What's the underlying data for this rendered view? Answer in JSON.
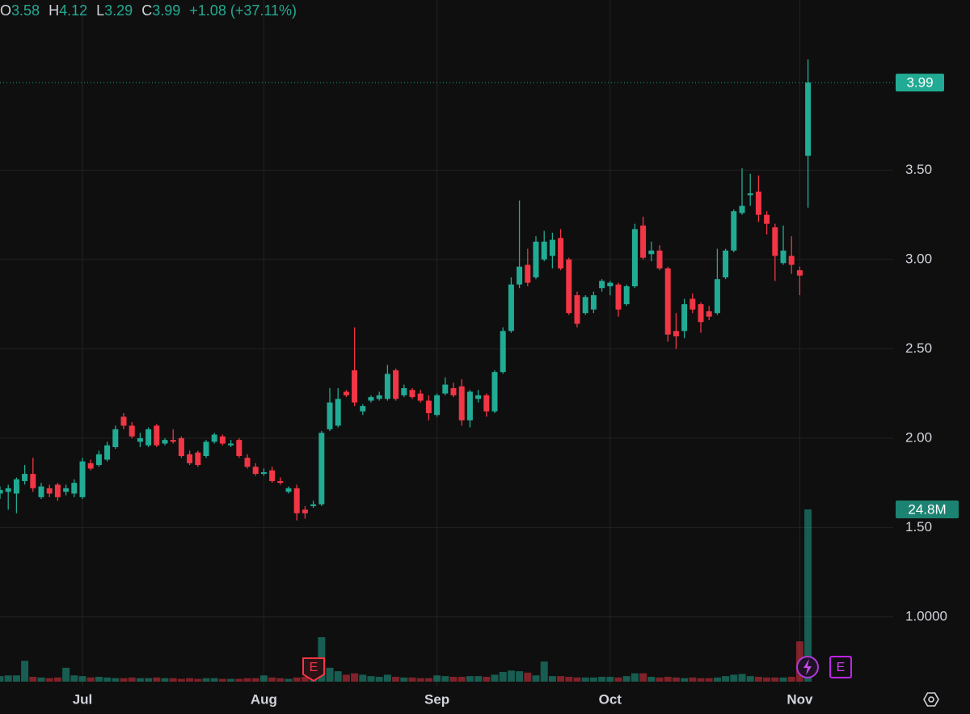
{
  "chart_data": {
    "type": "candlestick",
    "header": {
      "labels": [
        "O",
        "H",
        "L",
        "C"
      ],
      "change": "+1.08 (+37.11%)"
    },
    "categories": [
      null,
      null,
      null,
      null,
      null,
      null,
      null,
      null,
      null,
      null,
      "Jul",
      null,
      null,
      null,
      null,
      null,
      null,
      null,
      null,
      null,
      null,
      null,
      null,
      null,
      null,
      null,
      null,
      null,
      null,
      null,
      null,
      null,
      "Aug",
      null,
      null,
      null,
      null,
      null,
      null,
      null,
      null,
      null,
      null,
      null,
      null,
      null,
      null,
      null,
      null,
      null,
      null,
      null,
      null,
      "Sep",
      null,
      null,
      null,
      null,
      null,
      null,
      null,
      null,
      null,
      null,
      null,
      null,
      null,
      null,
      null,
      null,
      null,
      null,
      null,
      null,
      "Oct",
      null,
      null,
      null,
      null,
      null,
      null,
      null,
      null,
      null,
      null,
      null,
      null,
      null,
      null,
      null,
      null,
      null,
      null,
      null,
      null,
      null,
      null,
      "Nov",
      null
    ],
    "open": [
      1.69,
      1.7,
      1.69,
      1.76,
      1.8,
      1.67,
      1.72,
      1.74,
      1.7,
      1.69,
      1.67,
      1.86,
      1.85,
      1.88,
      1.95,
      2.12,
      2.07,
      1.98,
      1.96,
      2.07,
      1.97,
      1.99,
      2.0,
      1.91,
      1.92,
      1.9,
      1.98,
      2.01,
      1.96,
      1.99,
      1.89,
      1.84,
      1.8,
      1.82,
      1.76,
      1.7,
      1.72,
      1.6,
      1.62,
      1.63,
      2.05,
      2.07,
      2.26,
      2.38,
      2.15,
      2.21,
      2.22,
      2.22,
      2.38,
      2.24,
      2.27,
      2.25,
      2.21,
      2.13,
      2.25,
      2.28,
      2.29,
      2.1,
      2.22,
      2.24,
      2.15,
      2.37,
      2.6,
      2.86,
      2.97,
      2.9,
      3.0,
      3.02,
      3.12,
      3.0,
      2.8,
      2.7,
      2.72,
      2.84,
      2.85,
      2.86,
      2.75,
      2.85,
      3.19,
      3.03,
      3.05,
      2.95,
      2.6,
      2.6,
      2.78,
      2.75,
      2.71,
      2.7,
      2.9,
      3.05,
      3.26,
      3.36,
      3.38,
      3.25,
      3.18,
      2.98,
      3.02,
      2.94,
      3.58
    ],
    "high": [
      1.73,
      1.74,
      1.78,
      1.85,
      1.89,
      1.75,
      1.74,
      1.75,
      1.74,
      1.77,
      1.89,
      1.88,
      1.93,
      1.98,
      2.07,
      2.14,
      2.09,
      2.03,
      2.06,
      2.08,
      2.0,
      2.05,
      2.01,
      1.93,
      1.93,
      1.99,
      2.03,
      2.02,
      1.99,
      2.0,
      1.91,
      1.86,
      1.83,
      1.84,
      1.78,
      1.73,
      1.74,
      1.62,
      1.65,
      2.04,
      2.28,
      2.28,
      2.27,
      2.62,
      2.19,
      2.24,
      2.26,
      2.41,
      2.39,
      2.3,
      2.28,
      2.27,
      2.24,
      2.25,
      2.34,
      2.31,
      2.33,
      2.27,
      2.27,
      2.25,
      2.38,
      2.62,
      2.9,
      3.33,
      3.06,
      3.13,
      3.16,
      3.15,
      3.17,
      3.01,
      2.82,
      2.8,
      2.82,
      2.89,
      2.88,
      2.87,
      2.86,
      3.2,
      3.24,
      3.1,
      3.08,
      2.96,
      2.7,
      2.78,
      2.81,
      2.76,
      2.74,
      3.06,
      3.06,
      3.28,
      3.51,
      3.48,
      3.47,
      3.27,
      3.2,
      3.19,
      3.13,
      2.96,
      4.12
    ],
    "low": [
      1.66,
      1.6,
      1.58,
      1.74,
      1.7,
      1.66,
      1.67,
      1.65,
      1.68,
      1.67,
      1.66,
      1.82,
      1.84,
      1.87,
      1.94,
      2.05,
      2.0,
      1.95,
      1.95,
      1.95,
      1.96,
      1.97,
      1.89,
      1.85,
      1.84,
      1.89,
      1.97,
      1.96,
      1.95,
      1.89,
      1.83,
      1.79,
      1.79,
      1.75,
      1.74,
      1.69,
      1.54,
      1.55,
      1.61,
      1.62,
      2.04,
      2.06,
      2.23,
      2.18,
      2.13,
      2.2,
      2.21,
      2.21,
      2.21,
      2.23,
      2.22,
      2.2,
      2.1,
      2.12,
      2.24,
      2.23,
      2.07,
      2.06,
      2.2,
      2.12,
      2.14,
      2.36,
      2.59,
      2.84,
      2.85,
      2.89,
      2.99,
      2.95,
      2.94,
      2.69,
      2.62,
      2.69,
      2.7,
      2.82,
      2.8,
      2.68,
      2.74,
      2.84,
      3.0,
      2.99,
      2.94,
      2.54,
      2.5,
      2.56,
      2.7,
      2.59,
      2.66,
      2.69,
      2.89,
      3.04,
      3.25,
      3.3,
      3.21,
      3.14,
      2.88,
      2.97,
      2.92,
      2.8,
      3.29
    ],
    "close": [
      1.71,
      1.72,
      1.77,
      1.8,
      1.72,
      1.73,
      1.69,
      1.67,
      1.72,
      1.75,
      1.87,
      1.83,
      1.91,
      1.96,
      2.05,
      2.07,
      2.01,
      2.0,
      2.05,
      1.96,
      1.99,
      1.98,
      1.9,
      1.86,
      1.85,
      1.98,
      2.02,
      1.97,
      1.97,
      1.9,
      1.84,
      1.8,
      1.81,
      1.76,
      1.75,
      1.72,
      1.58,
      1.58,
      1.63,
      2.03,
      2.2,
      2.22,
      2.24,
      2.2,
      2.18,
      2.23,
      2.24,
      2.36,
      2.22,
      2.28,
      2.23,
      2.21,
      2.14,
      2.24,
      2.3,
      2.24,
      2.1,
      2.26,
      2.24,
      2.15,
      2.37,
      2.6,
      2.86,
      2.96,
      2.87,
      3.1,
      3.1,
      3.11,
      2.95,
      2.7,
      2.64,
      2.79,
      2.8,
      2.88,
      2.87,
      2.72,
      2.85,
      3.17,
      3.01,
      3.05,
      2.95,
      2.58,
      2.57,
      2.75,
      2.72,
      2.65,
      2.68,
      2.89,
      3.05,
      3.27,
      3.3,
      3.37,
      3.25,
      3.2,
      3.02,
      3.05,
      2.97,
      2.91,
      3.99
    ],
    "volume": [
      0.8,
      0.9,
      0.9,
      3.0,
      0.7,
      0.6,
      0.5,
      0.6,
      2.0,
      0.9,
      0.8,
      0.6,
      0.7,
      0.6,
      0.5,
      0.5,
      0.6,
      0.5,
      0.5,
      0.6,
      0.5,
      0.5,
      0.4,
      0.5,
      0.4,
      0.5,
      0.5,
      0.4,
      0.4,
      0.4,
      0.5,
      0.5,
      0.9,
      0.6,
      0.5,
      0.4,
      0.6,
      0.7,
      0.8,
      6.4,
      2.0,
      1.5,
      1.0,
      1.2,
      1.0,
      0.8,
      0.7,
      1.0,
      0.7,
      0.6,
      0.6,
      0.5,
      0.5,
      0.9,
      0.8,
      0.7,
      0.7,
      0.8,
      0.8,
      0.7,
      1.0,
      1.4,
      1.6,
      1.5,
      1.3,
      0.9,
      2.9,
      0.8,
      0.8,
      0.7,
      0.6,
      0.6,
      0.6,
      0.7,
      0.7,
      0.6,
      0.8,
      1.2,
      1.2,
      0.7,
      0.6,
      0.7,
      0.6,
      0.5,
      0.6,
      0.5,
      0.5,
      0.6,
      0.8,
      1.0,
      1.1,
      0.8,
      0.7,
      0.6,
      0.6,
      0.6,
      0.7,
      5.8,
      24.8
    ],
    "volume_label": "24.8M",
    "volume_ylim": [
      0,
      24.8
    ],
    "events": [
      "E",
      "E"
    ],
    "ylim": [
      0.615,
      4.452
    ],
    "yticks": [
      {
        "value": 1,
        "label": "1.0000"
      },
      {
        "value": 1.5,
        "label": "1.50"
      },
      {
        "value": 2,
        "label": "2.00"
      },
      {
        "value": 2.5,
        "label": "2.50"
      },
      {
        "value": 3,
        "label": "3.00"
      },
      {
        "value": 3.5,
        "label": "3.50"
      }
    ],
    "grid": true,
    "up_color": "#22ab94",
    "down_color": "#f23645"
  }
}
